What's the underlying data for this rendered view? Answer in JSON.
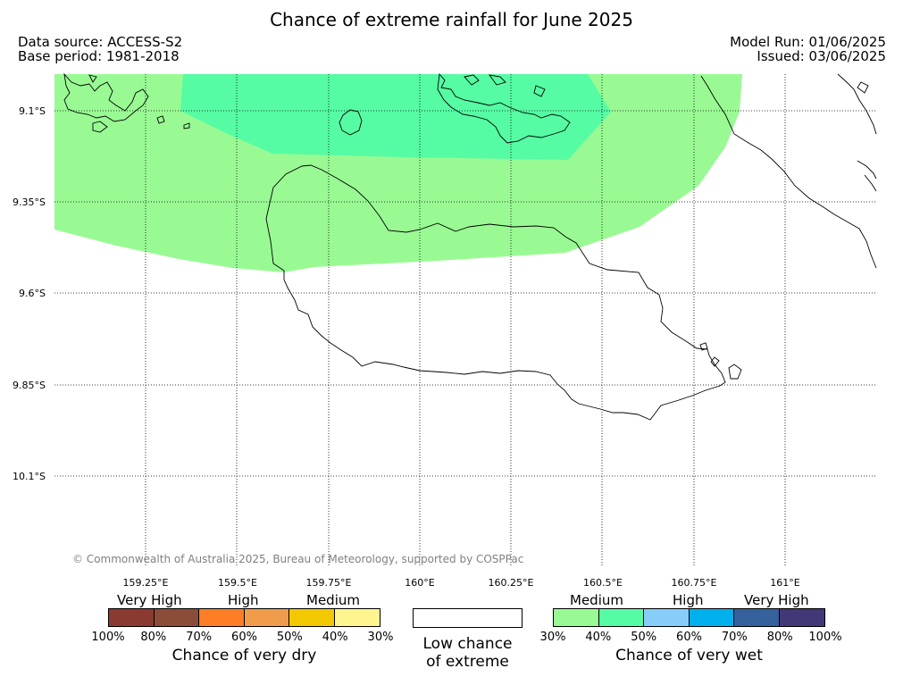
{
  "title": "Chance of extreme rainfall for June 2025",
  "header_left": {
    "line1": "Data source: ACCESS-S2",
    "line2": "Base period: 1981-2018"
  },
  "header_right": {
    "line1": "Model Run: 01/06/2025",
    "line2": "Issued: 03/06/2025"
  },
  "lat_labels": [
    "9.1°S",
    "9.35°S",
    "9.6°S",
    "9.85°S",
    "10.1°S"
  ],
  "lon_labels": [
    "159.25°E",
    "159.5°E",
    "159.75°E",
    "160°E",
    "160.25°E",
    "160.5°E",
    "160.75°E",
    "161°E"
  ],
  "copyright": "© Commonwealth of Australia 2025, Bureau of Meteorology, supported by COSPPac",
  "map_areas": {
    "medium_wet_color": "#99fa94",
    "high_wet_color": "#55fca3"
  },
  "dry_legend": {
    "categories": [
      "Very High",
      "High",
      "Medium"
    ],
    "colors": [
      "#8b3a32",
      "#8b4c3a",
      "#fe7e25",
      "#f09c4a",
      "#f2c900",
      "#fff58f"
    ],
    "ticks": [
      "100%",
      "80%",
      "70%",
      "60%",
      "50%",
      "40%",
      "30%"
    ],
    "caption": "Chance of very dry"
  },
  "low_legend": {
    "line1": "Low chance",
    "line2": "of extreme"
  },
  "wet_legend": {
    "categories": [
      "Medium",
      "High",
      "Very High"
    ],
    "colors": [
      "#99fa94",
      "#55fca3",
      "#87cdf9",
      "#00b0ed",
      "#35619d",
      "#433877"
    ],
    "ticks": [
      "30%",
      "40%",
      "50%",
      "60%",
      "70%",
      "80%",
      "100%"
    ],
    "caption": "Chance of very wet"
  }
}
